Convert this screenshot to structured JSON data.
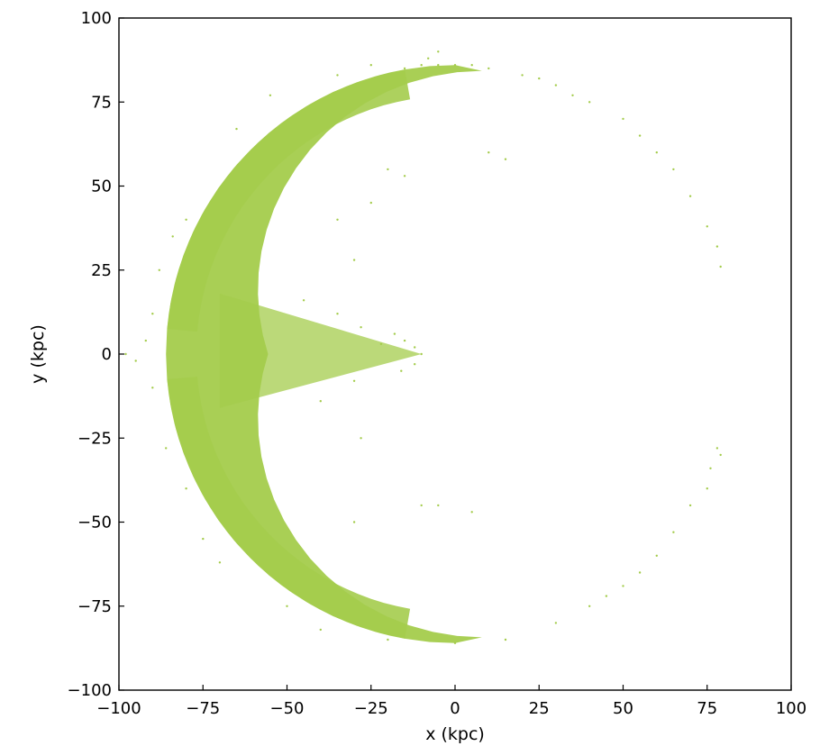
{
  "chart_data": {
    "type": "scatter",
    "xlabel": "x (kpc)",
    "ylabel": "y (kpc)",
    "xlim": [
      -100,
      100
    ],
    "ylim": [
      -100,
      100
    ],
    "xticks": [
      -100,
      -75,
      -50,
      -25,
      0,
      25,
      50,
      75,
      100
    ],
    "yticks": [
      -100,
      -75,
      -50,
      -25,
      0,
      25,
      50,
      75,
      100
    ],
    "x_tick_labels": [
      "−100",
      "−75",
      "−50",
      "−25",
      "0",
      "25",
      "50",
      "75",
      "100"
    ],
    "y_tick_labels": [
      "−100",
      "−75",
      "−50",
      "−25",
      "0",
      "25",
      "50",
      "75",
      "100"
    ],
    "grid": false,
    "tick_direction": "in",
    "marker_color": "#a4cc4c",
    "series": [
      {
        "points": [
          [
            -98,
            0
          ],
          [
            -95,
            -2
          ],
          [
            -92,
            4
          ],
          [
            -90,
            -10
          ],
          [
            -90,
            12
          ],
          [
            -88,
            25
          ],
          [
            -86,
            -28
          ],
          [
            -84,
            35
          ],
          [
            -80,
            -40
          ],
          [
            -80,
            40
          ],
          [
            -75,
            -55
          ],
          [
            -70,
            -62
          ],
          [
            -65,
            67
          ],
          [
            -55,
            77
          ],
          [
            -50,
            -75
          ],
          [
            -40,
            -82
          ],
          [
            -35,
            83
          ],
          [
            -25,
            86
          ],
          [
            -20,
            -85
          ],
          [
            -15,
            85
          ],
          [
            -10,
            86
          ],
          [
            -5,
            86
          ],
          [
            -5,
            90
          ],
          [
            -8,
            88
          ],
          [
            0,
            86
          ],
          [
            0,
            -86
          ],
          [
            5,
            86
          ],
          [
            10,
            85
          ],
          [
            15,
            -85
          ],
          [
            20,
            83
          ],
          [
            25,
            82
          ],
          [
            30,
            80
          ],
          [
            30,
            -80
          ],
          [
            35,
            77
          ],
          [
            40,
            75
          ],
          [
            40,
            -75
          ],
          [
            45,
            -72
          ],
          [
            50,
            70
          ],
          [
            50,
            -69
          ],
          [
            55,
            65
          ],
          [
            55,
            -65
          ],
          [
            60,
            60
          ],
          [
            60,
            -60
          ],
          [
            65,
            55
          ],
          [
            65,
            -53
          ],
          [
            70,
            47
          ],
          [
            70,
            -45
          ],
          [
            75,
            38
          ],
          [
            75,
            -40
          ],
          [
            78,
            32
          ],
          [
            79,
            26
          ],
          [
            78,
            -28
          ],
          [
            79,
            -30
          ],
          [
            76,
            -34
          ],
          [
            -10,
            0
          ],
          [
            -12,
            2
          ],
          [
            -15,
            4
          ],
          [
            -18,
            6
          ],
          [
            -12,
            -3
          ],
          [
            -16,
            -5
          ],
          [
            -22,
            3
          ],
          [
            -28,
            8
          ],
          [
            -35,
            12
          ],
          [
            -30,
            -8
          ],
          [
            -40,
            -14
          ],
          [
            -45,
            16
          ],
          [
            -20,
            55
          ],
          [
            -15,
            53
          ],
          [
            -25,
            45
          ],
          [
            -10,
            -45
          ],
          [
            -5,
            -45
          ],
          [
            5,
            -47
          ],
          [
            10,
            60
          ],
          [
            15,
            58
          ],
          [
            -30,
            -50
          ],
          [
            -35,
            40
          ],
          [
            -30,
            28
          ],
          [
            -28,
            -25
          ]
        ]
      }
    ]
  }
}
